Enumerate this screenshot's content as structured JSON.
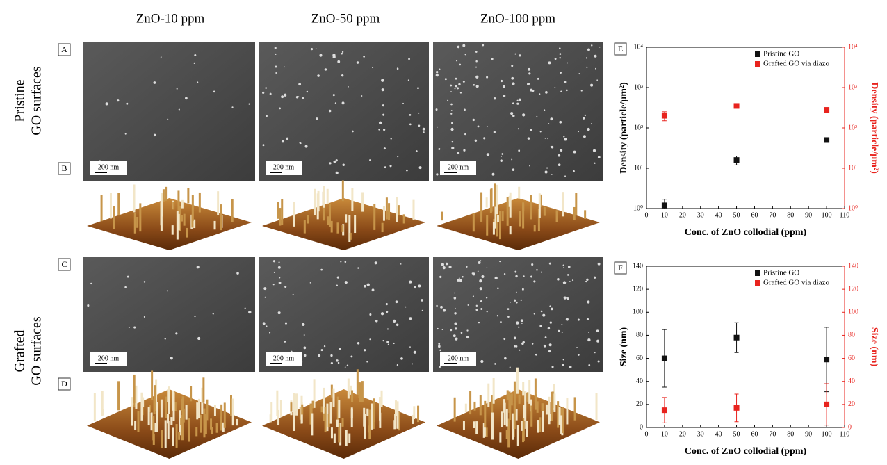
{
  "header": {
    "columns": [
      "ZnO-10 ppm",
      "ZnO-50 ppm",
      "ZnO-100 ppm"
    ]
  },
  "rows": [
    {
      "label": [
        "Pristine",
        "GO surfaces"
      ]
    },
    {
      "label": [
        "Grafted",
        "GO surfaces"
      ]
    }
  ],
  "panels": [
    {
      "letter": "A",
      "scale_bars": [
        "200 nm",
        "200 nm",
        "200 nm"
      ]
    },
    {
      "letter": "B"
    },
    {
      "letter": "C",
      "scale_bars": [
        "200 nm",
        "200 nm",
        "200 nm"
      ]
    },
    {
      "letter": "D"
    }
  ],
  "chart_data": [
    {
      "type": "scatter",
      "label": "E",
      "xlabel": "Conc. of ZnO collodial (ppm)",
      "ylabel": "Density (particle/μm²)",
      "y2label": "Density (particle/μm²)",
      "log": true,
      "legend": "upper right",
      "x": [
        10,
        50,
        100
      ],
      "series": [
        {
          "name": "Pristine GO",
          "color": "#111111",
          "values": [
            1.2,
            16,
            50
          ],
          "errors": [
            0.5,
            4,
            3
          ]
        },
        {
          "name": "Grafted GO via diazo",
          "color": "#e8231e",
          "axis": "y2",
          "values": [
            200,
            350,
            280
          ],
          "errors": [
            50,
            30,
            20
          ]
        }
      ],
      "xlim": [
        0,
        110
      ],
      "xticks": [
        0,
        10,
        20,
        30,
        40,
        50,
        60,
        70,
        80,
        90,
        100,
        110
      ],
      "ylim": [
        1,
        10000
      ],
      "yticks": [
        {
          "value": 1,
          "label": "10⁰"
        },
        {
          "value": 10,
          "label": "10¹"
        },
        {
          "value": 100,
          "label": "10²"
        },
        {
          "value": 1000,
          "label": "10³"
        },
        {
          "value": 10000,
          "label": "10⁴"
        }
      ],
      "y2lim": [
        1,
        10000
      ],
      "y2ticks": [
        {
          "value": 1,
          "label": "10⁰"
        },
        {
          "value": 10,
          "label": "10¹"
        },
        {
          "value": 100,
          "label": "10²"
        },
        {
          "value": 1000,
          "label": "10³"
        },
        {
          "value": 10000,
          "label": "10⁴"
        }
      ]
    },
    {
      "type": "scatter",
      "label": "F",
      "xlabel": "Conc. of ZnO collodial (ppm)",
      "ylabel": "Size (nm)",
      "y2label": "Size (nm)",
      "log": false,
      "legend": "upper right",
      "x": [
        10,
        50,
        100
      ],
      "series": [
        {
          "name": "Pristine GO",
          "color": "#111111",
          "values": [
            60,
            78,
            59
          ],
          "errors": [
            25,
            13,
            28
          ]
        },
        {
          "name": "Grafted GO via diazo",
          "color": "#e8231e",
          "axis": "y2",
          "values": [
            15,
            17,
            20
          ],
          "errors": [
            11,
            12,
            18
          ]
        }
      ],
      "xlim": [
        0,
        110
      ],
      "xticks": [
        0,
        10,
        20,
        30,
        40,
        50,
        60,
        70,
        80,
        90,
        100,
        110
      ],
      "ylim": [
        0,
        140
      ],
      "yticks": [
        0,
        20,
        40,
        60,
        80,
        100,
        120,
        140
      ],
      "y2lim": [
        0,
        140
      ],
      "y2ticks": [
        0,
        20,
        40,
        60,
        80,
        100,
        120,
        140
      ]
    }
  ]
}
